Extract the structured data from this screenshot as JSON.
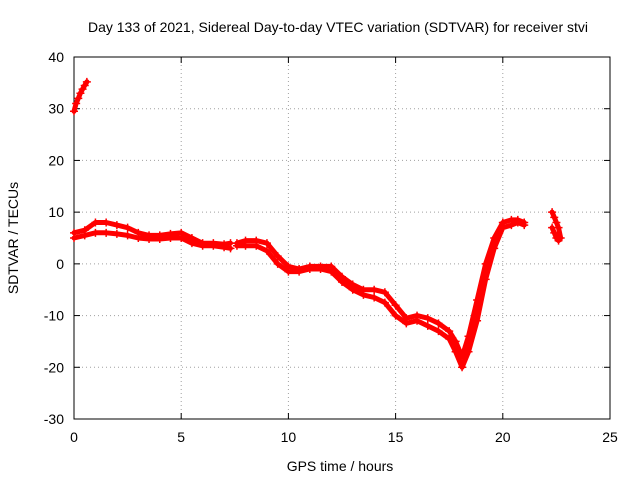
{
  "chart_data": {
    "type": "scatter",
    "title": "Day 133 of 2021, Sidereal Day-to-day VTEC variation (SDTVAR) for receiver stvi",
    "xlabel": "GPS time / hours",
    "ylabel": "SDTVAR / TECUs",
    "xlim": [
      0,
      25
    ],
    "ylim": [
      -30,
      40
    ],
    "xticks": [
      0,
      5,
      10,
      15,
      20,
      25
    ],
    "yticks": [
      -30,
      -20,
      -10,
      0,
      10,
      20,
      30,
      40
    ],
    "xtick_labels": [
      "0",
      "5",
      "10",
      "15",
      "20",
      "25"
    ],
    "ytick_labels": [
      "-30",
      "-20",
      "-10",
      "0",
      "10",
      "20",
      "30",
      "40"
    ],
    "grid": true,
    "marker": "+",
    "color": "#ff0000",
    "series": [
      {
        "name": "segment-1",
        "x": [
          0.0,
          0.1,
          0.2,
          0.3,
          0.4,
          0.5,
          0.6
        ],
        "y": [
          29.5,
          31,
          32,
          33,
          33.8,
          34.5,
          35.2
        ]
      },
      {
        "name": "segment-2-upper",
        "x": [
          0.0,
          0.5,
          1.0,
          1.5,
          2.0,
          2.5,
          3.0,
          3.5,
          4.0,
          4.5,
          5.0,
          5.5,
          6.0,
          6.5,
          7.0,
          7.3
        ],
        "y": [
          6,
          6.5,
          8,
          8,
          7.5,
          7,
          6,
          5.5,
          5.5,
          5.8,
          6,
          5,
          4,
          4,
          3.8,
          4
        ]
      },
      {
        "name": "segment-2-lower",
        "x": [
          0.0,
          0.5,
          1.0,
          1.5,
          2.0,
          2.5,
          3.0,
          3.5,
          4.0,
          4.5,
          5.0,
          5.5,
          6.0,
          6.5,
          7.0,
          7.3
        ],
        "y": [
          5,
          5.5,
          6,
          6,
          5.8,
          5.5,
          5,
          4.8,
          4.8,
          5,
          5,
          4,
          3.5,
          3.5,
          3.2,
          3
        ]
      },
      {
        "name": "segment-3-upper",
        "x": [
          7.6,
          8.0,
          8.5,
          9.0,
          9.5,
          10.0,
          10.5,
          11.0,
          11.5,
          12.0,
          12.5,
          13.0,
          13.5,
          14.0,
          14.5,
          15.0,
          15.5,
          16.0,
          16.5,
          17.0,
          17.5,
          17.8,
          18.1,
          18.4,
          18.8,
          19.2,
          19.6,
          20.0,
          20.4,
          20.7,
          21.0
        ],
        "y": [
          4,
          4.5,
          4.5,
          4,
          1.5,
          -0.5,
          -1,
          -0.5,
          -0.5,
          -0.5,
          -2.5,
          -4,
          -5,
          -5,
          -5.5,
          -8,
          -10.5,
          -10,
          -10.5,
          -11.5,
          -13,
          -15,
          -18,
          -14,
          -7,
          0,
          5,
          8,
          8.5,
          8.5,
          8
        ]
      },
      {
        "name": "segment-3-lower",
        "x": [
          7.6,
          8.0,
          8.5,
          9.0,
          9.5,
          10.0,
          10.5,
          11.0,
          11.5,
          12.0,
          12.5,
          13.0,
          13.5,
          14.0,
          14.5,
          15.0,
          15.5,
          16.0,
          16.5,
          17.0,
          17.5,
          17.8,
          18.1,
          18.4,
          18.8,
          19.2,
          19.6,
          20.0,
          20.4,
          20.7,
          21.0
        ],
        "y": [
          3.5,
          3.5,
          3.5,
          2.5,
          0,
          -1.5,
          -1.5,
          -1,
          -1,
          -1.5,
          -3.5,
          -5,
          -6,
          -6.5,
          -7.5,
          -10,
          -11.5,
          -11,
          -12,
          -13,
          -14.5,
          -17,
          -20,
          -17,
          -11,
          -3,
          3,
          7,
          7.5,
          8,
          7.5
        ]
      },
      {
        "name": "segment-4",
        "x": [
          22.3,
          22.4,
          22.5,
          22.6,
          22.7,
          22.6,
          22.5,
          22.4,
          22.3
        ],
        "y": [
          10,
          9,
          8,
          7,
          5,
          4.5,
          5,
          6,
          7
        ]
      }
    ]
  }
}
